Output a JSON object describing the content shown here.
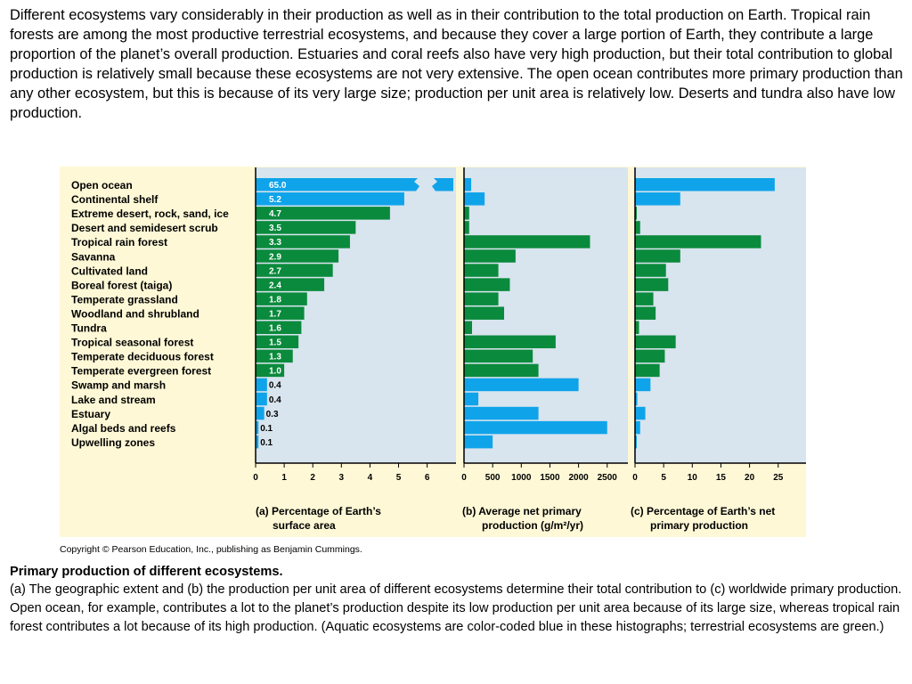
{
  "intro_text": "Different ecosystems vary considerably in their production as well as in their contribution to the total production on Earth. Tropical rain forests are among the most productive terrestrial ecosystems, and because they cover a large portion of Earth, they contribute a large proportion of the planet’s overall production. Estuaries and coral reefs also have very high production, but their total contribution to global production is relatively small because these ecosystems are not very extensive. The open ocean contributes more primary production than any other ecosystem, but this is because of its very large size; production per unit area is relatively low. Deserts and tundra also have low production.",
  "copyright": "Copyright © Pearson Education, Inc., publishing as Benjamin Cummings.",
  "caption": {
    "title": "Primary production of different ecosystems.",
    "text": "(a) The geographic extent and (b) the production per unit area of different ecosystems determine their total contribution to (c) worldwide primary production. Open ocean, for example, contributes a lot to the planet’s production despite its low production per unit area because of its large size, whereas tropical rain forest contributes a lot because of its high production. (Aquatic ecosystems are color-coded blue in these histographs; terrestrial ecosystems are green.)"
  },
  "colors": {
    "aquatic": "#0fa4ea",
    "terrestrial": "#0a8a3c",
    "panel_bg": "#d8e4ee",
    "frame_bg": "#fef8d6",
    "axis": "#000000"
  },
  "chart_data": [
    {
      "type": "bar",
      "orientation": "horizontal",
      "title": "(a) Percentage of Earth’s surface area",
      "categories": [
        "Open ocean",
        "Continental shelf",
        "Extreme desert, rock, sand, ice",
        "Desert and semidesert scrub",
        "Tropical rain forest",
        "Savanna",
        "Cultivated land",
        "Boreal forest (taiga)",
        "Temperate grassland",
        "Woodland and shrubland",
        "Tundra",
        "Tropical seasonal forest",
        "Temperate deciduous forest",
        "Temperate evergreen forest",
        "Swamp and marsh",
        "Lake and stream",
        "Estuary",
        "Algal beds and reefs",
        "Upwelling zones"
      ],
      "values": [
        65.0,
        5.2,
        4.7,
        3.5,
        3.3,
        2.9,
        2.7,
        2.4,
        1.8,
        1.7,
        1.6,
        1.5,
        1.3,
        1.0,
        0.4,
        0.4,
        0.3,
        0.1,
        0.1
      ],
      "value_labels": [
        "65.0",
        "5.2",
        "4.7",
        "3.5",
        "3.3",
        "2.9",
        "2.7",
        "2.4",
        "1.8",
        "1.7",
        "1.6",
        "1.5",
        "1.3",
        "1.0",
        "0.4",
        "0.4",
        "0.3",
        "0.1",
        "0.1"
      ],
      "ecosystem_type": [
        "aquatic",
        "aquatic",
        "terrestrial",
        "terrestrial",
        "terrestrial",
        "terrestrial",
        "terrestrial",
        "terrestrial",
        "terrestrial",
        "terrestrial",
        "terrestrial",
        "terrestrial",
        "terrestrial",
        "terrestrial",
        "aquatic",
        "aquatic",
        "aquatic",
        "aquatic",
        "aquatic"
      ],
      "xlim": [
        0,
        7
      ],
      "xticks": [
        0,
        1,
        2,
        3,
        4,
        5,
        6
      ],
      "axis_break": true
    },
    {
      "type": "bar",
      "orientation": "horizontal",
      "title": "(b) Average net primary production (g/m²/yr)",
      "values": [
        125,
        360,
        90,
        90,
        2200,
        900,
        600,
        800,
        600,
        700,
        140,
        1600,
        1200,
        1300,
        2000,
        250,
        1300,
        2500,
        500
      ],
      "xlim": [
        0,
        2700
      ],
      "xticks": [
        0,
        500,
        1000,
        1500,
        2000,
        2500
      ]
    },
    {
      "type": "bar",
      "orientation": "horizontal",
      "title": "(c) Percentage of Earth’s net primary production",
      "values": [
        24.4,
        7.9,
        0.04,
        0.9,
        22,
        7.9,
        5.4,
        5.8,
        3.2,
        3.6,
        0.7,
        7.1,
        5.2,
        4.3,
        2.7,
        0.4,
        1.8,
        0.9,
        0.2
      ],
      "xlim": [
        0,
        30.5
      ],
      "xticks": [
        0,
        5,
        10,
        15,
        20,
        25
      ]
    }
  ]
}
